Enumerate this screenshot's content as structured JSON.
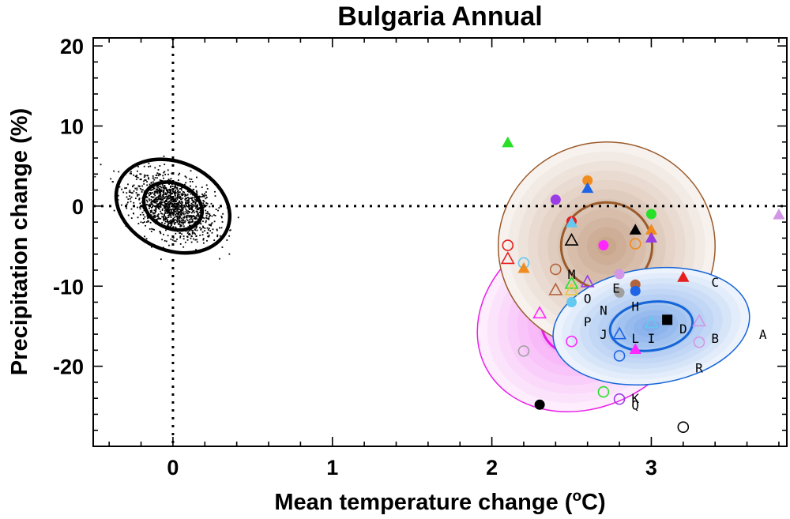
{
  "chart_data": {
    "type": "scatter",
    "title": "Bulgaria Annual",
    "xlabel": "Mean temperature change (",
    "xlabel_sup": "o",
    "xlabel_end": "C)",
    "ylabel": "Precipitation change (%)",
    "xlim": [
      -0.5,
      3.85
    ],
    "ylim": [
      -30,
      21
    ],
    "x_ticks": [
      {
        "value": 0,
        "label": "0"
      },
      {
        "value": 1,
        "label": "1"
      },
      {
        "value": 2,
        "label": "2"
      },
      {
        "value": 3,
        "label": "3"
      }
    ],
    "y_ticks": [
      {
        "value": 20,
        "label": "20"
      },
      {
        "value": 10,
        "label": "10"
      },
      {
        "value": 0,
        "label": "0"
      },
      {
        "value": -10,
        "label": "-10"
      },
      {
        "value": -20,
        "label": "-20"
      }
    ],
    "reference_lines": {
      "x": 0,
      "y": 0,
      "style": "dotted"
    },
    "natural_variability": {
      "center": [
        0,
        0
      ],
      "ellipses": [
        {
          "rx": 0.19,
          "ry": 2.8,
          "label": "inner"
        },
        {
          "rx": 0.37,
          "ry": 5.5,
          "label": "outer"
        }
      ],
      "scatter_count": 1300,
      "sd_x": 0.13,
      "sd_y": 2.0
    },
    "distributions": [
      {
        "name": "magenta",
        "color": "#e81ee8",
        "center": [
          2.6,
          -13.5
        ],
        "rx": 0.72,
        "ry": 11.5,
        "angle_deg": -28
      },
      {
        "name": "brown",
        "color": "#9a5a2a",
        "center": [
          2.72,
          -5.0
        ],
        "rx": 0.68,
        "ry": 13.0,
        "angle_deg": 0
      },
      {
        "name": "blue",
        "color": "#1565d8",
        "center": [
          3.0,
          -15.0
        ],
        "rx": 0.62,
        "ry": 7.2,
        "angle_deg": -8
      }
    ],
    "model_letters": [
      {
        "label": "A",
        "x": 3.7,
        "y": -16
      },
      {
        "label": "B",
        "x": 3.4,
        "y": -16.5
      },
      {
        "label": "C",
        "x": 3.4,
        "y": -9.5
      },
      {
        "label": "D",
        "x": 3.2,
        "y": -15.3
      },
      {
        "label": "E",
        "x": 2.78,
        "y": -10.2
      },
      {
        "label": "H",
        "x": 2.9,
        "y": -12.5
      },
      {
        "label": "I",
        "x": 3.0,
        "y": -16.5
      },
      {
        "label": "J",
        "x": 2.7,
        "y": -16
      },
      {
        "label": "K",
        "x": 2.9,
        "y": -24
      },
      {
        "label": "L",
        "x": 2.9,
        "y": -16.5
      },
      {
        "label": "M",
        "x": 2.5,
        "y": -8.5
      },
      {
        "label": "N",
        "x": 2.7,
        "y": -13
      },
      {
        "label": "O",
        "x": 2.6,
        "y": -11.5
      },
      {
        "label": "P",
        "x": 2.6,
        "y": -14.4
      },
      {
        "label": "Q",
        "x": 2.9,
        "y": -24.8
      },
      {
        "label": "R",
        "x": 3.3,
        "y": -20.2
      }
    ],
    "points": [
      {
        "x": 2.1,
        "y": 7.9,
        "marker": "triangle",
        "fill": true,
        "color": "#28e028"
      },
      {
        "x": 2.6,
        "y": 3.2,
        "marker": "circle",
        "fill": true,
        "color": "#f08c1e"
      },
      {
        "x": 2.6,
        "y": 2.2,
        "marker": "triangle",
        "fill": true,
        "color": "#1e64e6"
      },
      {
        "x": 2.4,
        "y": 0.8,
        "marker": "circle",
        "fill": true,
        "color": "#9a3ce6"
      },
      {
        "x": 3.0,
        "y": -1.0,
        "marker": "circle",
        "fill": true,
        "color": "#28e028"
      },
      {
        "x": 2.5,
        "y": -1.9,
        "marker": "circle",
        "fill": true,
        "color": "#e61e1e"
      },
      {
        "x": 2.5,
        "y": -2.1,
        "marker": "triangle",
        "fill": true,
        "color": "#64c8f0"
      },
      {
        "x": 2.9,
        "y": -3.0,
        "marker": "triangle",
        "fill": true,
        "color": "#000000"
      },
      {
        "x": 3.0,
        "y": -3.0,
        "marker": "triangle",
        "fill": true,
        "color": "#f08c1e"
      },
      {
        "x": 3.0,
        "y": -4.0,
        "marker": "triangle",
        "fill": true,
        "color": "#9a3ce6"
      },
      {
        "x": 2.5,
        "y": -4.3,
        "marker": "triangle",
        "fill": false,
        "color": "#000000"
      },
      {
        "x": 2.7,
        "y": -4.9,
        "marker": "circle",
        "fill": true,
        "color": "#ff28ff"
      },
      {
        "x": 2.9,
        "y": -4.7,
        "marker": "circle",
        "fill": false,
        "color": "#f08c1e"
      },
      {
        "x": 2.1,
        "y": -4.9,
        "marker": "circle",
        "fill": false,
        "color": "#e61e1e"
      },
      {
        "x": 2.1,
        "y": -6.6,
        "marker": "triangle",
        "fill": false,
        "color": "#e61e1e"
      },
      {
        "x": 2.2,
        "y": -7.1,
        "marker": "circle",
        "fill": false,
        "color": "#64c8f0"
      },
      {
        "x": 2.2,
        "y": -7.8,
        "marker": "triangle",
        "fill": true,
        "color": "#f08c1e"
      },
      {
        "x": 2.4,
        "y": -7.9,
        "marker": "circle",
        "fill": false,
        "color": "#b4643c"
      },
      {
        "x": 2.8,
        "y": -8.5,
        "marker": "circle",
        "fill": true,
        "color": "#d296e6"
      },
      {
        "x": 3.2,
        "y": -8.9,
        "marker": "triangle",
        "fill": true,
        "color": "#e61e1e"
      },
      {
        "x": 2.6,
        "y": -9.5,
        "marker": "triangle",
        "fill": false,
        "color": "#9a3ce6"
      },
      {
        "x": 2.5,
        "y": -9.7,
        "marker": "triangle",
        "fill": false,
        "color": "#28e028"
      },
      {
        "x": 2.4,
        "y": -10.5,
        "marker": "triangle",
        "fill": false,
        "color": "#b4643c"
      },
      {
        "x": 2.5,
        "y": -10.5,
        "marker": "triangle",
        "fill": false,
        "color": "#e6c83c"
      },
      {
        "x": 2.9,
        "y": -9.8,
        "marker": "circle",
        "fill": true,
        "color": "#b4643c"
      },
      {
        "x": 2.8,
        "y": -10.8,
        "marker": "circle",
        "fill": true,
        "color": "#a0a0a0"
      },
      {
        "x": 2.9,
        "y": -10.6,
        "marker": "circle",
        "fill": true,
        "color": "#1e64e6"
      },
      {
        "x": 2.5,
        "y": -12.0,
        "marker": "circle",
        "fill": true,
        "color": "#64c8f0"
      },
      {
        "x": 2.3,
        "y": -13.4,
        "marker": "triangle",
        "fill": false,
        "color": "#ff28ff"
      },
      {
        "x": 3.1,
        "y": -14.2,
        "marker": "square",
        "fill": true,
        "color": "#000000"
      },
      {
        "x": 3.0,
        "y": -14.6,
        "marker": "triangle",
        "fill": false,
        "color": "#64c8f0"
      },
      {
        "x": 3.3,
        "y": -14.4,
        "marker": "triangle",
        "fill": false,
        "color": "#d296e6"
      },
      {
        "x": 2.8,
        "y": -16.0,
        "marker": "triangle",
        "fill": false,
        "color": "#1e64e6"
      },
      {
        "x": 2.5,
        "y": -16.9,
        "marker": "circle",
        "fill": false,
        "color": "#ff28ff"
      },
      {
        "x": 3.3,
        "y": -17.0,
        "marker": "circle",
        "fill": false,
        "color": "#d296e6"
      },
      {
        "x": 2.9,
        "y": -17.9,
        "marker": "triangle",
        "fill": true,
        "color": "#ff28ff"
      },
      {
        "x": 2.2,
        "y": -18.1,
        "marker": "circle",
        "fill": false,
        "color": "#a0a0a0"
      },
      {
        "x": 2.8,
        "y": -18.7,
        "marker": "circle",
        "fill": false,
        "color": "#1e64e6"
      },
      {
        "x": 2.7,
        "y": -23.2,
        "marker": "circle",
        "fill": false,
        "color": "#28e028"
      },
      {
        "x": 2.8,
        "y": -24.1,
        "marker": "circle",
        "fill": false,
        "color": "#9a3ce6"
      },
      {
        "x": 2.3,
        "y": -24.8,
        "marker": "circle",
        "fill": true,
        "color": "#000000"
      },
      {
        "x": 3.2,
        "y": -27.6,
        "marker": "circle",
        "fill": false,
        "color": "#000000"
      },
      {
        "x": 3.8,
        "y": -1.1,
        "marker": "triangle",
        "fill": true,
        "color": "#d296e6"
      }
    ]
  }
}
